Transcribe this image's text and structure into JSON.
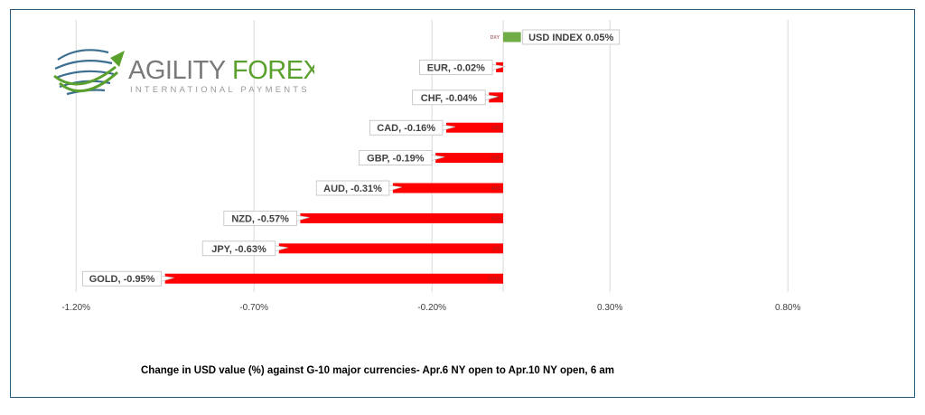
{
  "logo": {
    "word1": "AGILITY",
    "word2": "FOREX",
    "tagline": "INTERNATIONAL PAYMENTS",
    "icon": "globe-swoosh-icon",
    "colors": {
      "word1": "#7a7a7a",
      "word2": "#5aa02c",
      "globe": "#3b6e8f",
      "arrow": "#5aa02c"
    }
  },
  "caption": "Change in  USD value (%)  against  G-10 major currencies- Apr.6 NY open to Apr.10 NY open, 6 am",
  "chart_data": {
    "type": "bar",
    "orientation": "horizontal",
    "categories": [
      "DXY",
      "EUR",
      "CHF",
      "CAD",
      "GBP",
      "AUD",
      "NZD",
      "JPY",
      "GOLD"
    ],
    "values": [
      0.05,
      -0.02,
      -0.04,
      -0.16,
      -0.19,
      -0.31,
      -0.57,
      -0.63,
      -0.95
    ],
    "labels": [
      "USD INDEX 0.05%",
      "EUR, -0.02%",
      "CHF, -0.04%",
      "CAD, -0.16%",
      "GBP, -0.19%",
      "AUD, -0.31%",
      "NZD, -0.57%",
      "JPY, -0.63%",
      "GOLD, -0.95%"
    ],
    "xlim": [
      -1.2,
      1.3
    ],
    "xticks": [
      "-1.20%",
      "-0.70%",
      "-0.20%",
      "0.30%",
      "0.80%"
    ],
    "xtick_values": [
      -1.2,
      -0.7,
      -0.2,
      0.3,
      0.8
    ],
    "grid": true,
    "colors": {
      "positive": "#70ad47",
      "negative": "#ff0000",
      "grid": "#d9d9d9"
    }
  }
}
